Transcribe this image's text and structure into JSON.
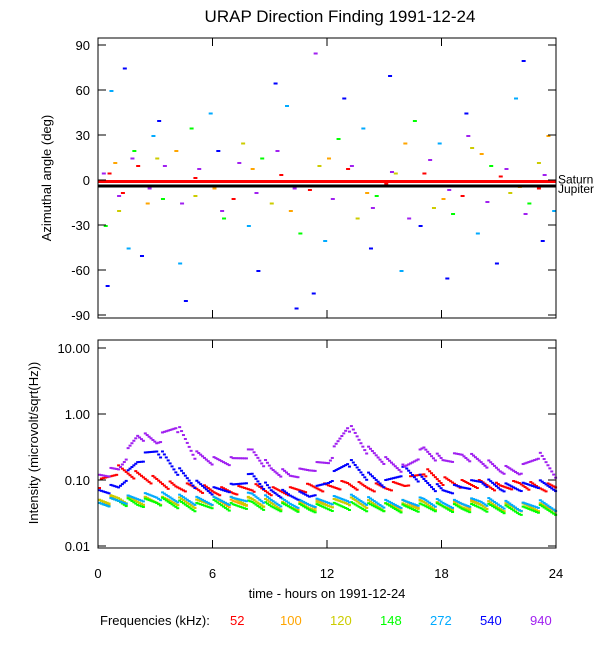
{
  "chart_data": [
    {
      "type": "scatter",
      "title": "URAP Direction Finding  1991-12-24",
      "ylabel": "Azimuthal angle (deg)",
      "xlim": [
        0,
        24
      ],
      "ylim": [
        -90,
        90
      ],
      "yticks": [
        "90",
        "60",
        "30",
        "0",
        "-30",
        "-60",
        "-90"
      ],
      "ytick_values": [
        90,
        60,
        30,
        0,
        -30,
        -60,
        -90
      ],
      "reference_lines": [
        {
          "name": "Saturn",
          "y": -1,
          "color": "#ff0000"
        },
        {
          "name": "Jupiter",
          "y": -4,
          "color": "#000000"
        }
      ],
      "series": [
        {
          "name": "52",
          "color": "#ff0000",
          "points": [
            [
              0.5,
              5
            ],
            [
              1.2,
              -8
            ],
            [
              2,
              10
            ],
            [
              3.5,
              -3
            ],
            [
              5,
              2
            ],
            [
              7,
              -12
            ],
            [
              9.5,
              4
            ],
            [
              11,
              -6
            ],
            [
              13,
              8
            ],
            [
              15,
              -2
            ],
            [
              17,
              5
            ],
            [
              19,
              -10
            ],
            [
              21,
              3
            ],
            [
              23,
              -5
            ]
          ]
        },
        {
          "name": "100",
          "color": "#ffa500",
          "points": [
            [
              0.8,
              12
            ],
            [
              2.5,
              -15
            ],
            [
              4,
              20
            ],
            [
              6,
              -5
            ],
            [
              8,
              8
            ],
            [
              10,
              -20
            ],
            [
              12,
              15
            ],
            [
              14,
              -8
            ],
            [
              16,
              25
            ],
            [
              18,
              -12
            ],
            [
              20,
              18
            ],
            [
              22,
              -4
            ],
            [
              23.5,
              30
            ]
          ]
        },
        {
          "name": "120",
          "color": "#cccc00",
          "points": [
            [
              1,
              -20
            ],
            [
              3,
              15
            ],
            [
              5,
              -10
            ],
            [
              7.5,
              25
            ],
            [
              9,
              -15
            ],
            [
              11.5,
              10
            ],
            [
              13.5,
              -25
            ],
            [
              15.5,
              5
            ],
            [
              17.5,
              -18
            ],
            [
              19.5,
              22
            ],
            [
              21.5,
              -8
            ],
            [
              23,
              12
            ]
          ]
        },
        {
          "name": "148",
          "color": "#00ff00",
          "points": [
            [
              0.3,
              -30
            ],
            [
              1.8,
              20
            ],
            [
              3.3,
              -12
            ],
            [
              4.8,
              35
            ],
            [
              6.5,
              -25
            ],
            [
              8.5,
              15
            ],
            [
              10.5,
              -35
            ],
            [
              12.5,
              28
            ],
            [
              14.5,
              -10
            ],
            [
              16.5,
              40
            ],
            [
              18.5,
              -22
            ],
            [
              20.5,
              10
            ],
            [
              22.5,
              -15
            ]
          ]
        },
        {
          "name": "272",
          "color": "#00aaff",
          "points": [
            [
              0.6,
              60
            ],
            [
              1.5,
              -45
            ],
            [
              2.8,
              30
            ],
            [
              4.2,
              -55
            ],
            [
              5.8,
              45
            ],
            [
              7.8,
              -30
            ],
            [
              9.8,
              50
            ],
            [
              11.8,
              -40
            ],
            [
              13.8,
              35
            ],
            [
              15.8,
              -60
            ],
            [
              17.8,
              25
            ],
            [
              19.8,
              -35
            ],
            [
              21.8,
              55
            ],
            [
              23.8,
              -20
            ]
          ]
        },
        {
          "name": "540",
          "color": "#0000ff",
          "points": [
            [
              0.4,
              -70
            ],
            [
              1.3,
              75
            ],
            [
              2.2,
              -50
            ],
            [
              3.1,
              40
            ],
            [
              4.5,
              -80
            ],
            [
              6.2,
              20
            ],
            [
              8.3,
              -60
            ],
            [
              9.2,
              65
            ],
            [
              10.3,
              -85
            ],
            [
              11.2,
              -75
            ],
            [
              12.8,
              55
            ],
            [
              14.2,
              -45
            ],
            [
              15.2,
              70
            ],
            [
              16.8,
              -30
            ],
            [
              18.2,
              -65
            ],
            [
              19.2,
              45
            ],
            [
              20.8,
              -55
            ],
            [
              22.2,
              80
            ],
            [
              23.2,
              -40
            ]
          ]
        },
        {
          "name": "940",
          "color": "#a020f0",
          "points": [
            [
              0.2,
              5
            ],
            [
              1,
              -10
            ],
            [
              1.7,
              15
            ],
            [
              2.6,
              -5
            ],
            [
              3.4,
              10
            ],
            [
              4.3,
              -15
            ],
            [
              5.2,
              8
            ],
            [
              6.4,
              -20
            ],
            [
              7.3,
              12
            ],
            [
              8.2,
              -8
            ],
            [
              9.3,
              20
            ],
            [
              10.2,
              -5
            ],
            [
              11.3,
              85
            ],
            [
              12.2,
              -12
            ],
            [
              13.2,
              10
            ],
            [
              14.3,
              -18
            ],
            [
              15.3,
              6
            ],
            [
              16.2,
              -25
            ],
            [
              17.3,
              14
            ],
            [
              18.3,
              -6
            ],
            [
              19.3,
              30
            ],
            [
              20.3,
              -14
            ],
            [
              21.3,
              8
            ],
            [
              22.3,
              -22
            ],
            [
              23.3,
              4
            ]
          ]
        }
      ]
    },
    {
      "type": "line",
      "ylabel": "Intensity (microvolt/sqrt(Hz))",
      "xlabel": "time - hours on 1991-12-24",
      "xlim": [
        0,
        24
      ],
      "ylim": [
        0.01,
        10
      ],
      "yscale": "log",
      "xticks": [
        "0",
        "6",
        "12",
        "18",
        "24"
      ],
      "xtick_values": [
        0,
        6,
        12,
        18,
        24
      ],
      "yticks": [
        "10.00",
        "1.00",
        "0.10",
        "0.01"
      ],
      "ytick_values": [
        10,
        1,
        0.1,
        0.01
      ],
      "x": [
        0,
        1,
        2,
        3,
        4,
        5,
        6,
        7,
        8,
        9,
        10,
        11,
        12,
        13,
        14,
        15,
        16,
        17,
        18,
        19,
        20,
        21,
        22,
        23,
        24
      ],
      "series": [
        {
          "name": "52",
          "color": "#ff0000",
          "values": [
            0.09,
            0.15,
            0.12,
            0.1,
            0.08,
            0.08,
            0.07,
            0.07,
            0.08,
            0.07,
            0.07,
            0.08,
            0.08,
            0.09,
            0.08,
            0.08,
            0.09,
            0.14,
            0.1,
            0.09,
            0.09,
            0.08,
            0.09,
            0.08,
            0.08
          ]
        },
        {
          "name": "100",
          "color": "#ffa500",
          "values": [
            0.05,
            0.05,
            0.05,
            0.05,
            0.05,
            0.045,
            0.05,
            0.045,
            0.05,
            0.045,
            0.04,
            0.045,
            0.045,
            0.05,
            0.045,
            0.04,
            0.045,
            0.045,
            0.04,
            0.045,
            0.045,
            0.04,
            0.04,
            0.04,
            0.04
          ]
        },
        {
          "name": "120",
          "color": "#cccc00",
          "values": [
            0.05,
            0.055,
            0.05,
            0.05,
            0.05,
            0.045,
            0.05,
            0.05,
            0.05,
            0.045,
            0.04,
            0.04,
            0.045,
            0.05,
            0.045,
            0.04,
            0.04,
            0.045,
            0.04,
            0.04,
            0.045,
            0.04,
            0.04,
            0.04,
            0.035
          ]
        },
        {
          "name": "148",
          "color": "#00ff00",
          "values": [
            0.045,
            0.05,
            0.045,
            0.05,
            0.045,
            0.04,
            0.045,
            0.04,
            0.045,
            0.04,
            0.04,
            0.038,
            0.04,
            0.042,
            0.04,
            0.04,
            0.038,
            0.04,
            0.04,
            0.038,
            0.04,
            0.038,
            0.035,
            0.038,
            0.035
          ]
        },
        {
          "name": "272",
          "color": "#00aaff",
          "values": [
            0.045,
            0.05,
            0.055,
            0.06,
            0.055,
            0.05,
            0.05,
            0.05,
            0.06,
            0.05,
            0.045,
            0.045,
            0.05,
            0.055,
            0.05,
            0.045,
            0.045,
            0.05,
            0.045,
            0.045,
            0.05,
            0.045,
            0.04,
            0.045,
            0.04
          ]
        },
        {
          "name": "540",
          "color": "#0000ff",
          "values": [
            0.07,
            0.08,
            0.2,
            0.3,
            0.15,
            0.09,
            0.07,
            0.08,
            0.12,
            0.07,
            0.06,
            0.06,
            0.1,
            0.2,
            0.12,
            0.09,
            0.15,
            0.1,
            0.07,
            0.08,
            0.1,
            0.08,
            0.08,
            0.09,
            0.08
          ]
        },
        {
          "name": "940",
          "color": "#a020f0",
          "values": [
            0.12,
            0.15,
            0.5,
            0.4,
            0.7,
            0.25,
            0.2,
            0.2,
            0.28,
            0.15,
            0.12,
            0.15,
            0.2,
            0.7,
            0.3,
            0.2,
            0.15,
            0.3,
            0.2,
            0.25,
            0.2,
            0.15,
            0.14,
            0.25,
            0.12
          ]
        }
      ]
    }
  ],
  "legend": {
    "label": "Frequencies (kHz):",
    "entries": [
      "52",
      "100",
      "120",
      "148",
      "272",
      "540",
      "940"
    ]
  }
}
